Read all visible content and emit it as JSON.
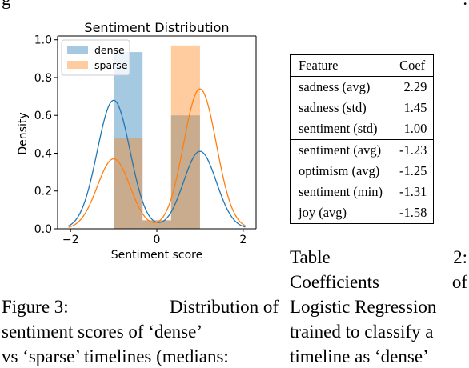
{
  "chart_data": {
    "type": "bar",
    "title": "Sentiment Distribution",
    "xlabel": "Sentiment score",
    "ylabel": "Density",
    "xlim": [
      -2.3,
      2.3
    ],
    "ylim": [
      0,
      1.02
    ],
    "xticks": [
      "−2",
      "0",
      "2"
    ],
    "xtick_values": [
      -2,
      0,
      2
    ],
    "yticks": [
      "0.0",
      "0.2",
      "0.4",
      "0.6",
      "0.8",
      "1.0"
    ],
    "ytick_values": [
      0,
      0.2,
      0.4,
      0.6,
      0.8,
      1.0
    ],
    "legend_position": "top-left",
    "series": [
      {
        "name": "dense",
        "color": "#1f77b4",
        "histogram": {
          "bin_edges": [
            -1.0,
            -0.33,
            0.33,
            1.0
          ],
          "densities": [
            0.935,
            0.045,
            0.6
          ]
        },
        "kde_peaks": [
          {
            "x": -1.0,
            "y": 0.68
          },
          {
            "x": -0.1,
            "y": 0.05
          },
          {
            "x": 1.0,
            "y": 0.41
          }
        ]
      },
      {
        "name": "sparse",
        "color": "#ff7f0e",
        "histogram": {
          "bin_edges": [
            -1.0,
            -0.33,
            0.33,
            1.0
          ],
          "densities": [
            0.48,
            0.045,
            0.97
          ]
        },
        "kde_peaks": [
          {
            "x": -1.0,
            "y": 0.37
          },
          {
            "x": 0.1,
            "y": 0.045
          },
          {
            "x": 1.0,
            "y": 0.74
          }
        ]
      }
    ]
  },
  "figure_caption": {
    "lines": [
      [
        "Figure 3:",
        "Distribution of"
      ],
      [
        "sentiment scores of ‘dense’"
      ],
      [
        "vs ‘sparse’ timelines (medians:"
      ]
    ]
  },
  "table": {
    "headers": [
      "Feature",
      "Coef"
    ],
    "rows": [
      [
        "sadness (avg)",
        "2.29"
      ],
      [
        "sadness (std)",
        "1.45"
      ],
      [
        "sentiment (std)",
        "1.00"
      ],
      [
        "sentiment (avg)",
        "-1.23"
      ],
      [
        "optimism (avg)",
        "-1.25"
      ],
      [
        "sentiment (min)",
        "-1.31"
      ],
      [
        "joy (avg)",
        "-1.58"
      ]
    ],
    "caption_lines": [
      [
        "Table",
        "2:"
      ],
      [
        "Coefficients",
        "of"
      ],
      [
        "Logistic Regression"
      ],
      [
        "trained to classify a"
      ],
      [
        "timeline as ‘dense’"
      ]
    ]
  },
  "fragments": {
    "top_left": "g",
    "top_right": ":"
  }
}
